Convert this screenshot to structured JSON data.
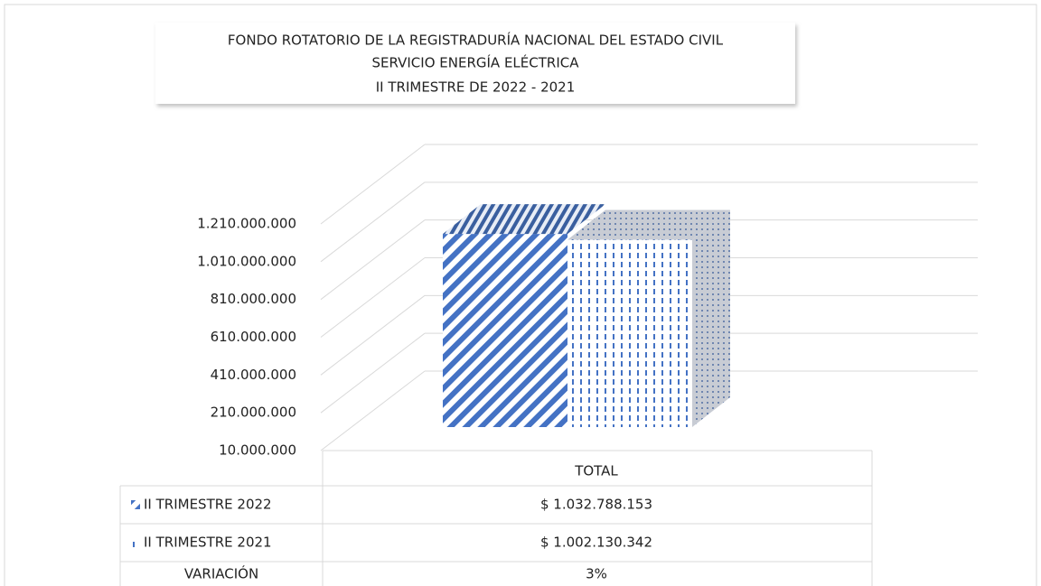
{
  "chart_data": {
    "type": "bar3d",
    "title": [
      "FONDO ROTATORIO DE LA REGISTRADURÍA NACIONAL DEL ESTADO CIVIL",
      "SERVICIO ENERGÍA ELÉCTRICA",
      "II TRIMESTRE DE 2022 - 2021"
    ],
    "categories": [
      "TOTAL"
    ],
    "series": [
      {
        "name": "II TRIMESTRE 2022",
        "color": "#4472c4",
        "values": [
          1032788153
        ],
        "value_labels": [
          "$ 1.032.788.153"
        ]
      },
      {
        "name": "II TRIMESTRE 2021",
        "color": "#4472c4",
        "values": [
          1002130342
        ],
        "value_labels": [
          "$ 1.002.130.342"
        ]
      }
    ],
    "ylim": [
      10000000,
      1210000000
    ],
    "yticks": [
      {
        "value": 10000000,
        "label": "10.000.000"
      },
      {
        "value": 210000000,
        "label": "210.000.000"
      },
      {
        "value": 410000000,
        "label": "410.000.000"
      },
      {
        "value": 610000000,
        "label": "610.000.000"
      },
      {
        "value": 810000000,
        "label": "810.000.000"
      },
      {
        "value": 1010000000,
        "label": "1.010.000.000"
      },
      {
        "value": 1210000000,
        "label": "1.210.000.000"
      }
    ],
    "grid": true,
    "variation_header": "VARIACIÓN",
    "variation": [
      "3%"
    ]
  }
}
